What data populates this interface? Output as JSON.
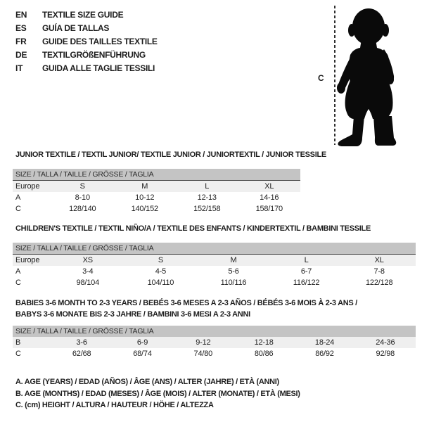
{
  "header": {
    "languages": [
      {
        "code": "EN",
        "title": "TEXTILE SIZE GUIDE"
      },
      {
        "code": "ES",
        "title": "GUÍA DE TALLAS"
      },
      {
        "code": "FR",
        "title": "GUIDE DES TAILLES TEXTILE"
      },
      {
        "code": "DE",
        "title": "TEXTILGRÖßENFÜHRUNG"
      },
      {
        "code": "IT",
        "title": "GUIDA ALLE TAGLIE TESSILI"
      }
    ]
  },
  "figure": {
    "height_label": "C"
  },
  "tables": [
    {
      "title_lines": [
        "JUNIOR TEXTILE / TEXTIL JUNIOR/ TEXTILE JUNIOR / JUNIORTEXTIL / JUNIOR TESSILE"
      ],
      "size_header": "SIZE / TALLA / TAILLE / GRÖSSE / TAGLIA",
      "rows": [
        [
          "Europe",
          "S",
          "M",
          "L",
          "XL"
        ],
        [
          "A",
          "8-10",
          "10-12",
          "12-13",
          "14-16"
        ],
        [
          "C",
          "128/140",
          "140/152",
          "152/158",
          "158/170"
        ]
      ]
    },
    {
      "title_lines": [
        "CHILDREN'S TEXTILE / TEXTIL NIÑO/A / TEXTILE DES ENFANTS / KINDERTEXTIL / BAMBINI TESSILE"
      ],
      "size_header": "SIZE / TALLA / TAILLE / GRÖSSE / TAGLIA",
      "rows": [
        [
          "Europe",
          "XS",
          "S",
          "M",
          "L",
          "XL"
        ],
        [
          "A",
          "3-4",
          "4-5",
          "5-6",
          "6-7",
          "7-8"
        ],
        [
          "C",
          "98/104",
          "104/110",
          "110/116",
          "116/122",
          "122/128"
        ]
      ]
    },
    {
      "title_lines": [
        "BABIES 3-6 MONTH TO 2-3 YEARS / BEBÉS 3-6 MESES A 2-3 AÑOS / BÉBÉS 3-6 MOIS À 2-3 ANS /",
        "BABYS 3-6 MONATE BIS 2-3 JAHRE / BAMBINI 3-6 MESI A 2-3 ANNI"
      ],
      "size_header": "SIZE / TALLA / TAILLE / GRÖSSE / TAGLIA",
      "rows": [
        [
          "B",
          "3-6",
          "6-9",
          "9-12",
          "12-18",
          "18-24",
          "24-36"
        ],
        [
          "C",
          "62/68",
          "68/74",
          "74/80",
          "80/86",
          "86/92",
          "92/98"
        ]
      ]
    }
  ],
  "footnotes": [
    "A. AGE (YEARS) / EDAD (AÑOS) / ÂGE (ANS) / ALTER (JAHRE) / ETÀ (ANNI)",
    "B. AGE (MONTHS) / EDAD (MESES) / ÂGE (MOIS) / ALTER (MONATE) / ETÀ (MESI)",
    "C. (cm) HEIGHT / ALTURA / HAUTEUR / HÖHE / ALTEZZA"
  ],
  "colors": {
    "bar_bg": "#c4c4c4",
    "row_shaded": "#efefef",
    "rule": "#454545",
    "text": "#1d1d1d",
    "silhouette": "#0a0a0a"
  }
}
